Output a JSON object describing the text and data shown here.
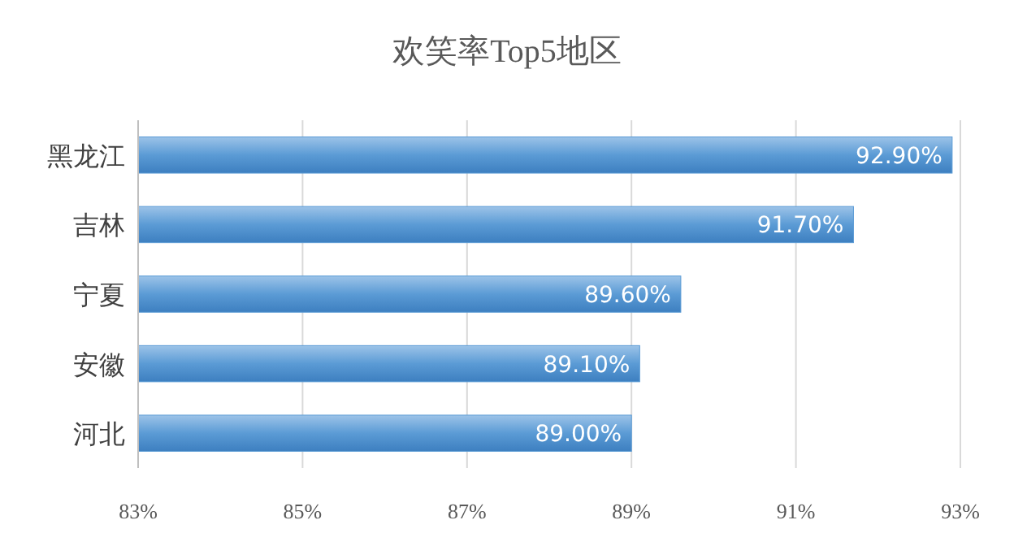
{
  "chart_data": {
    "type": "bar",
    "orientation": "horizontal",
    "title": "欢笑率Top5地区",
    "categories": [
      "黑龙江",
      "吉林",
      "宁夏",
      "安徽",
      "河北"
    ],
    "values": [
      92.9,
      91.7,
      89.6,
      89.1,
      89.0
    ],
    "value_labels": [
      "92.90%",
      "91.70%",
      "89.60%",
      "89.10%",
      "89.00%"
    ],
    "color": "#5b9bd5",
    "xlim": [
      83,
      93
    ],
    "xticks": [
      {
        "value": 83,
        "label": "83%"
      },
      {
        "value": 85,
        "label": "85%"
      },
      {
        "value": 87,
        "label": "87%"
      },
      {
        "value": 89,
        "label": "89%"
      },
      {
        "value": 91,
        "label": "91%"
      },
      {
        "value": 93,
        "label": "93%"
      }
    ],
    "grid": "x"
  }
}
